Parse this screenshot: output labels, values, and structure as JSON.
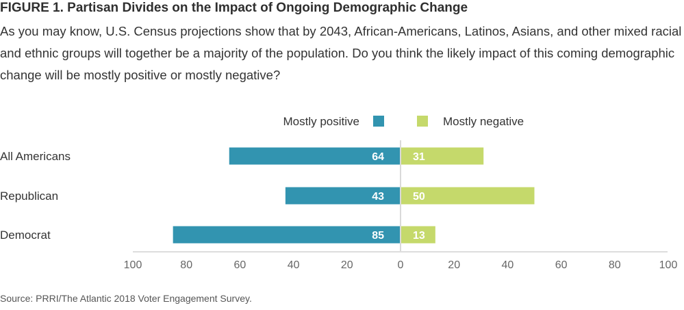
{
  "header": {
    "title": "FIGURE 1. Partisan Divides on the Impact of Ongoing Demographic Change",
    "question": "As you may know, U.S. Census projections show that by 2043, African-Americans, Latinos, Asians, and other mixed racial and ethnic groups will together be a majority of the population. Do you think the likely impact of this coming demographic change will be mostly positive or mostly negative?"
  },
  "source": "Source: PRRI/The Atlantic 2018 Voter Engagement Survey.",
  "chart_data": {
    "type": "bar",
    "orientation": "horizontal-diverging",
    "categories": [
      "All Americans",
      "Republican",
      "Democrat"
    ],
    "series": [
      {
        "name": "Mostly positive",
        "values": [
          64,
          43,
          85
        ],
        "color": "#3294b0",
        "direction": "left"
      },
      {
        "name": "Mostly negative",
        "values": [
          31,
          50,
          13
        ],
        "color": "#c5d96b",
        "direction": "right"
      }
    ],
    "xlim": [
      -100,
      100
    ],
    "x_tick_labels": [
      "100",
      "80",
      "60",
      "40",
      "20",
      "0",
      "20",
      "40",
      "60",
      "80",
      "100"
    ],
    "legend_position": "top-center",
    "grid": false
  }
}
